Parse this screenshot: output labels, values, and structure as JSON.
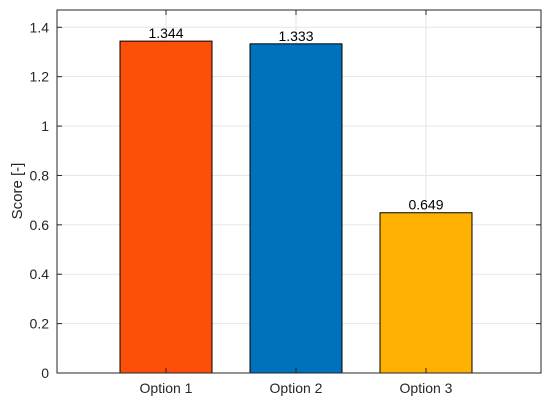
{
  "chart_data": {
    "type": "bar",
    "title": "",
    "xlabel": "",
    "ylabel": "Score [-]",
    "categories": [
      "Option 1",
      "Option 2",
      "Option 3"
    ],
    "values": [
      1.344,
      1.333,
      0.649
    ],
    "value_labels": [
      "1.344",
      "1.333",
      "0.649"
    ],
    "bar_colors": [
      "#FC4F0A",
      "#0072BD",
      "#FFB000"
    ],
    "ylim": [
      0,
      1.47
    ],
    "yticks": [
      0,
      0.2,
      0.4,
      0.6,
      0.8,
      1,
      1.2,
      1.4
    ],
    "ytick_labels": [
      "0",
      "0.2",
      "0.4",
      "0.6",
      "0.8",
      "1",
      "1.2",
      "1.4"
    ],
    "grid": true,
    "legend": "none"
  }
}
